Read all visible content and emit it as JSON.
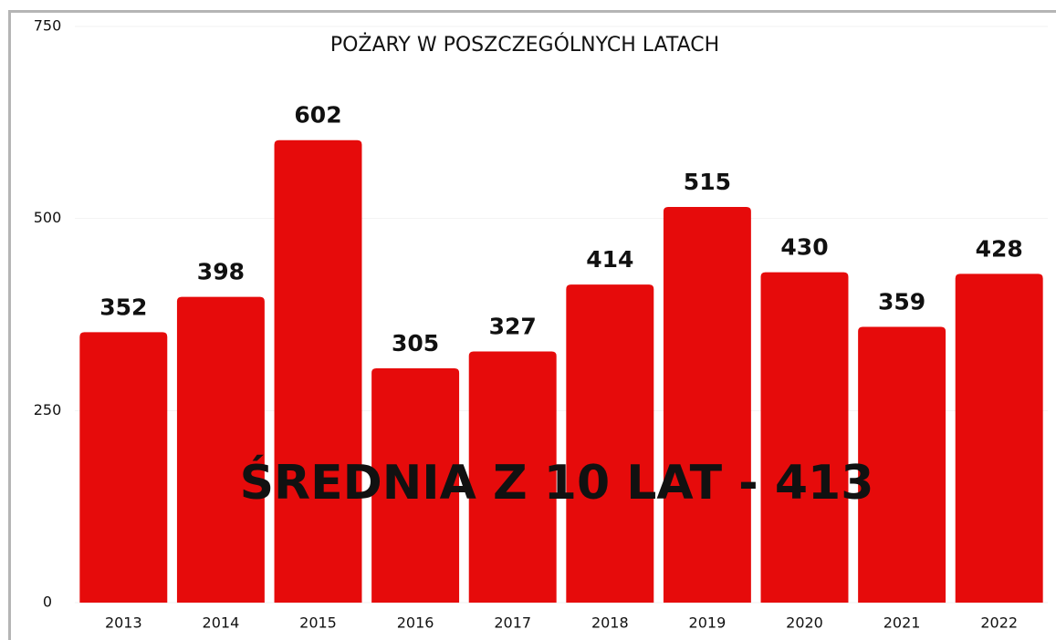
{
  "chart_data": {
    "type": "bar",
    "title": "POŻARY W POSZCZEGÓLNYCH LATACH",
    "categories": [
      "2013",
      "2014",
      "2015",
      "2016",
      "2017",
      "2018",
      "2019",
      "2020",
      "2021",
      "2022"
    ],
    "values": [
      352,
      398,
      602,
      305,
      327,
      414,
      515,
      430,
      359,
      428
    ],
    "color": "#e60b0b",
    "ylim": [
      0,
      750
    ],
    "yticks": [
      0,
      250,
      500,
      750
    ],
    "grid": true,
    "annotation": "ŚREDNIA Z 10 LAT - 413"
  }
}
